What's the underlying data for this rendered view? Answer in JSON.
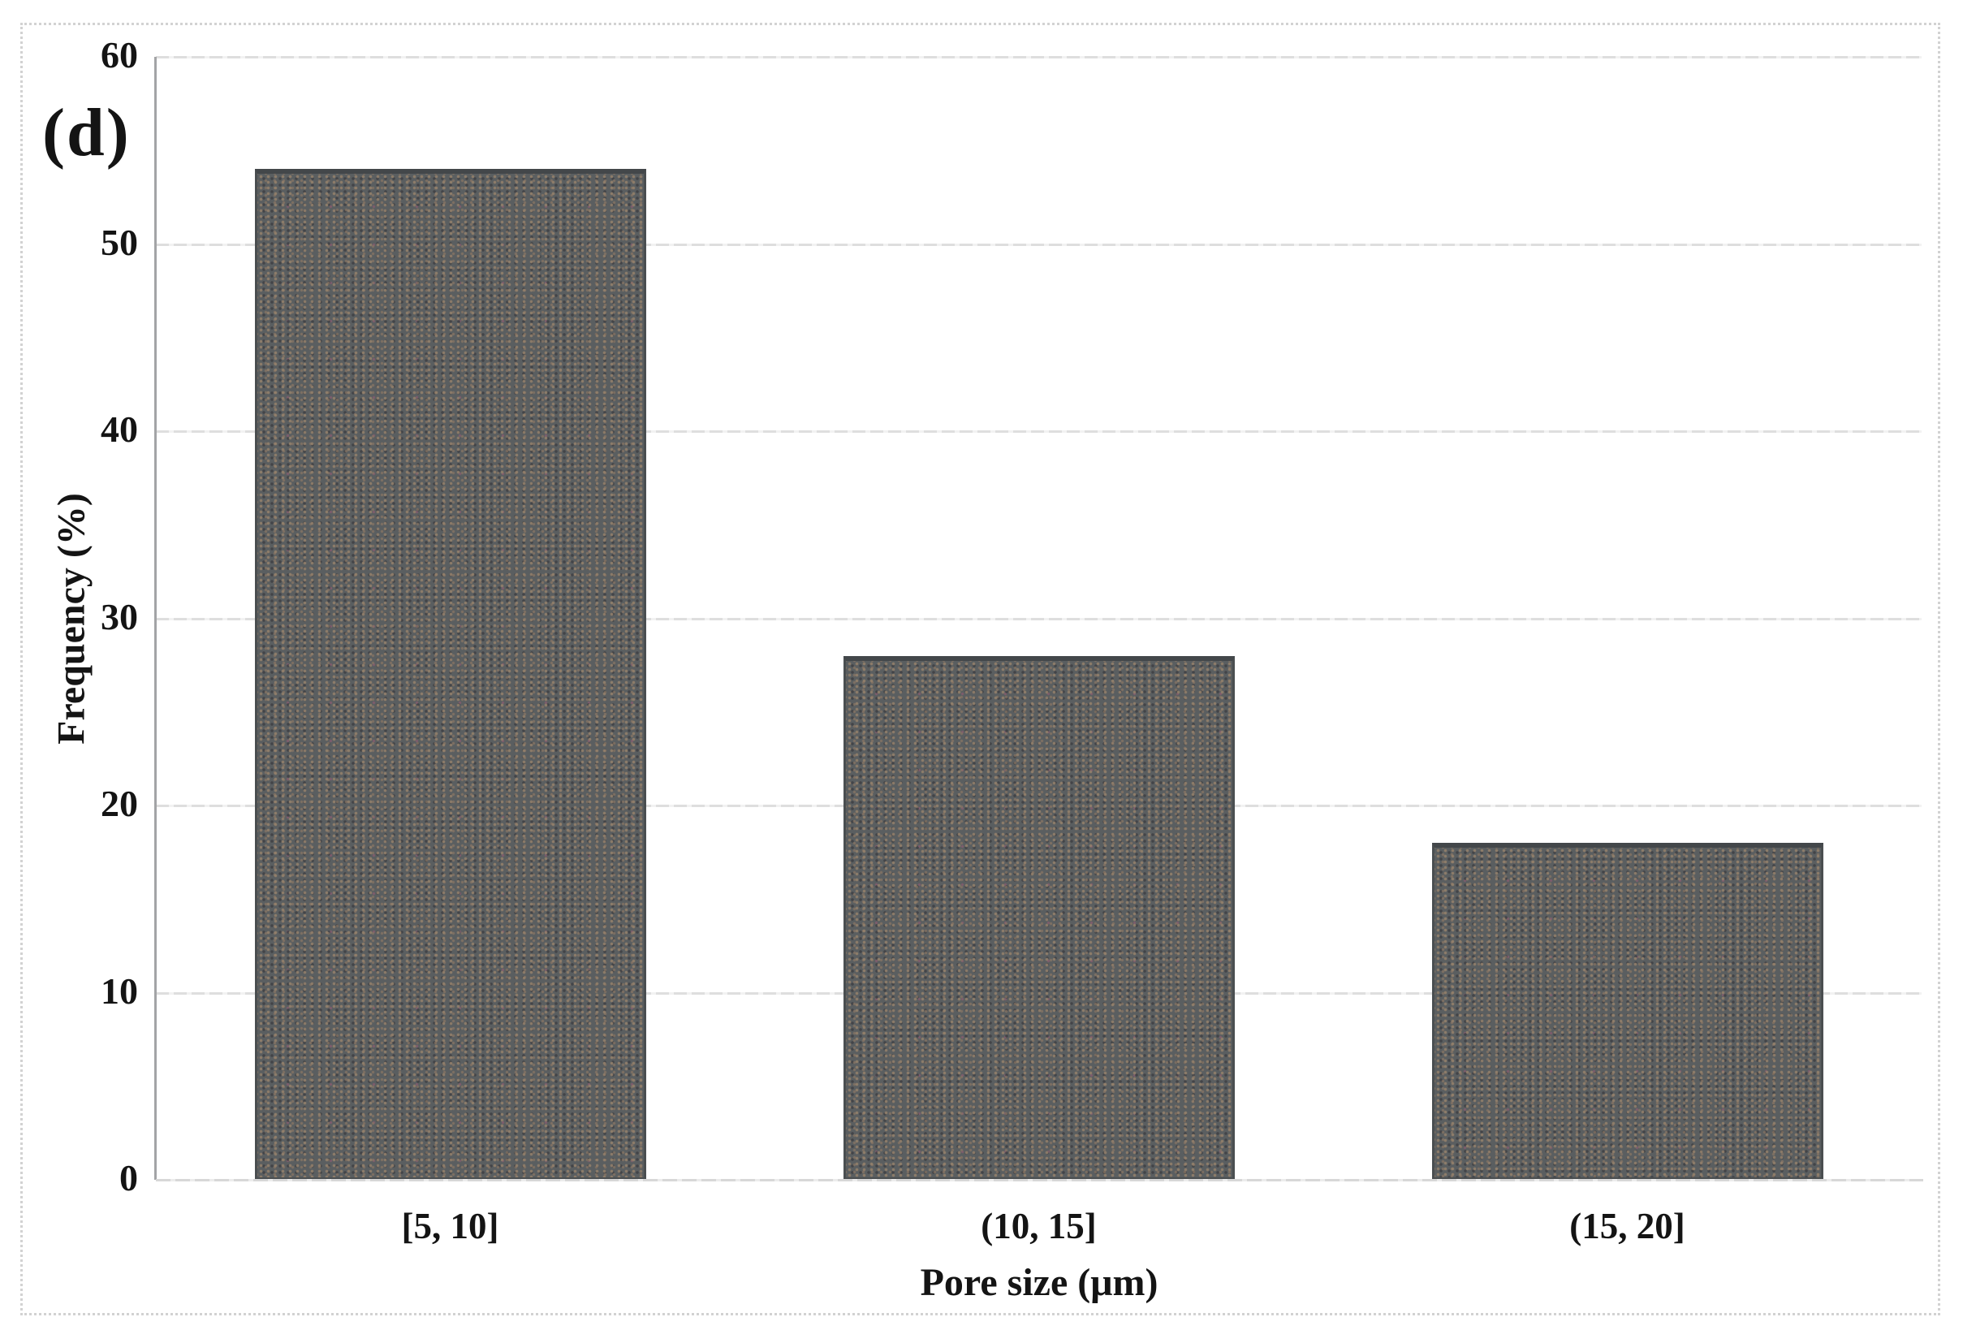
{
  "figure": {
    "panel_label": "(d)"
  },
  "chart_data": {
    "type": "bar",
    "title": "",
    "categories": [
      "[5, 10]",
      "(10, 15]",
      "(15, 20]"
    ],
    "values": [
      54,
      28,
      18
    ],
    "xlabel": "Pore size (μm)",
    "ylabel": "Frequency (%)",
    "ylim": [
      0,
      60
    ],
    "yticks": [
      0,
      10,
      20,
      30,
      40,
      50,
      60
    ],
    "grid": true,
    "legend": "none",
    "bar_color": "#5a5e60",
    "bar_border_color": "#4a4e50",
    "gridline_color": "#dedede",
    "axis_line_color": "#a3a4a6",
    "text_color": "#141414",
    "figure_border_color": "#d2d2d2",
    "background_color": "#ffffff"
  }
}
